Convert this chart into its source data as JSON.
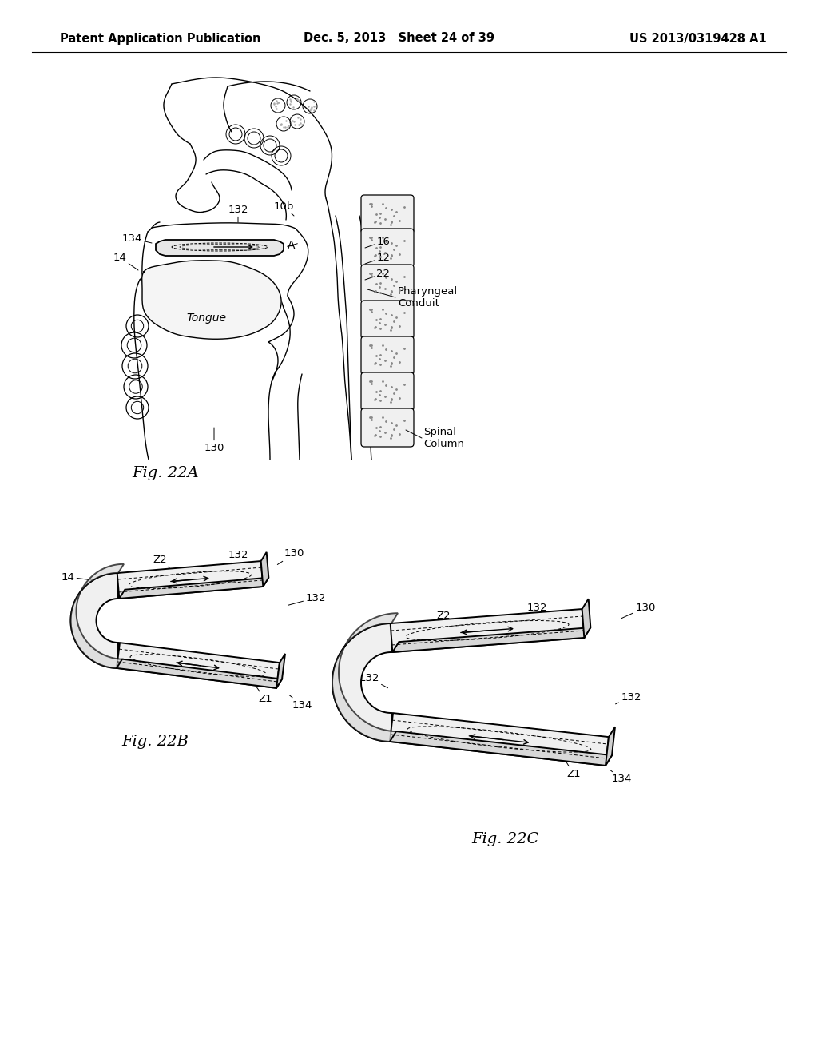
{
  "background_color": "#ffffff",
  "header_left": "Patent Application Publication",
  "header_center": "Dec. 5, 2013   Sheet 24 of 39",
  "header_right": "US 2013/0319428 A1"
}
